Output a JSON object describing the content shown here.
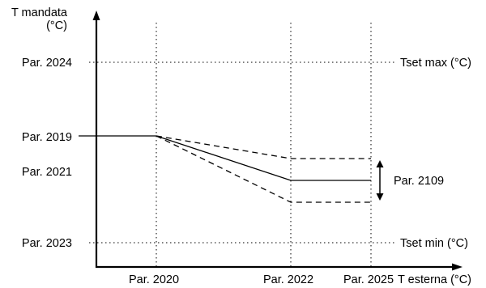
{
  "axes": {
    "y_label_line1": "T mandata",
    "y_label_line2": "(°C)",
    "x_label": "T esterna (°C)"
  },
  "y_ticks": {
    "p2024": "Par. 2024",
    "p2019": "Par. 2019",
    "p2021": "Par. 2021",
    "p2023": "Par. 2023"
  },
  "x_ticks": {
    "p2020": "Par. 2020",
    "p2022": "Par. 2022",
    "p2025": "Par. 2025"
  },
  "right_labels": {
    "tset_max": "Tset max (°C)",
    "tset_min": "Tset min (°C)",
    "band": "Par. 2109"
  }
}
